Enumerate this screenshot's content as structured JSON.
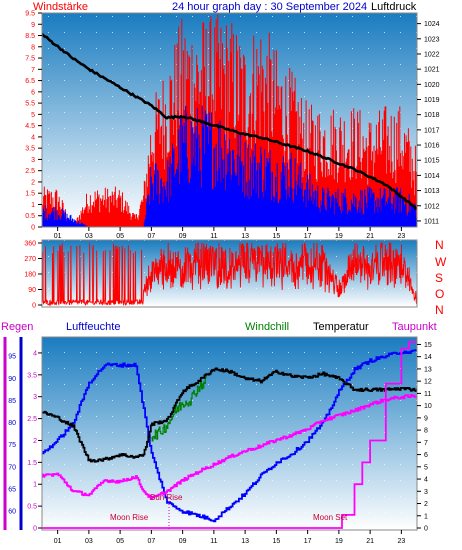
{
  "header": {
    "left_label": "Windstärke",
    "title": "24 hour graph day : 30 September 2024",
    "right_label": "Luftdruck"
  },
  "direction_labels": [
    "N",
    "W",
    "S",
    "O",
    "N"
  ],
  "legend": {
    "regen": "Regen",
    "luftfeuchte": "Luftfeuchte",
    "windchill": "Windchill",
    "temperatur": "Temperatur",
    "taupunkt": "Taupunkt"
  },
  "annotations": {
    "moon_rise": "Moon Rise",
    "sun_rise": "Sun Rise",
    "moon_set": "Moon Set"
  },
  "colors": {
    "wind_gust": "#ff0000",
    "wind_avg": "#0000ff",
    "pressure": "#000000",
    "direction": "#ff0000",
    "humidity": "#0000ff",
    "temperature": "#000000",
    "windchill": "#008000",
    "dewpoint": "#ff00ff",
    "rain": "#ff00ff",
    "bg_top": "#1a7cc0",
    "bg_bottom": "#ffffff"
  },
  "chart_data": [
    {
      "type": "area",
      "panel": "wind_pressure",
      "x_ticks": [
        "01",
        "03",
        "05",
        "07",
        "09",
        "11",
        "13",
        "15",
        "17",
        "19",
        "21",
        "23"
      ],
      "y_left_ticks": [
        "0",
        "0.5",
        "1",
        "1.5",
        "2",
        "2.5",
        "3",
        "3.5",
        "4",
        "4.5",
        "5",
        "5.5",
        "6",
        "6.5",
        "7",
        "7.5",
        "8",
        "8.5",
        "9",
        "9.5"
      ],
      "y_right_ticks": [
        "1011",
        "1012",
        "1013",
        "1014",
        "1015",
        "1016",
        "1017",
        "1018",
        "1019",
        "1020",
        "1021",
        "1022",
        "1023",
        "1024"
      ],
      "ylim_left": [
        0,
        9.5
      ],
      "ylim_right": [
        1010.6,
        1024.7
      ],
      "xlim": [
        0,
        24
      ],
      "series": [
        {
          "key": "gust",
          "x": [
            0,
            1,
            2,
            3,
            4,
            5,
            6,
            6.5,
            7,
            8,
            9,
            10,
            11,
            12,
            13,
            14,
            15,
            16,
            17,
            18,
            19,
            20,
            21,
            22,
            23,
            24
          ],
          "values": [
            1.8,
            1.8,
            0,
            1.8,
            1.8,
            1.8,
            0.5,
            1.8,
            5.5,
            7.5,
            9.5,
            9.5,
            9.5,
            9.5,
            8.5,
            9.5,
            8,
            7,
            5.5,
            5.5,
            5.5,
            5.5,
            5,
            5.5,
            5.5,
            3.5
          ]
        },
        {
          "key": "avg",
          "x": [
            0,
            1,
            2,
            3,
            4,
            5,
            6,
            6.5,
            7,
            8,
            9,
            10,
            11,
            12,
            13,
            14,
            15,
            16,
            17,
            18,
            19,
            20,
            21,
            22,
            23,
            24
          ],
          "values": [
            1,
            1,
            0.5,
            0,
            0,
            0,
            0,
            0,
            3,
            3,
            5.5,
            5.5,
            5.5,
            5,
            4,
            4,
            3.5,
            3.5,
            2.5,
            1.8,
            1.8,
            1.8,
            1.8,
            1.8,
            1.8,
            1.2
          ]
        },
        {
          "key": "pressure",
          "x": [
            0,
            1,
            2,
            3,
            4,
            5,
            6,
            7,
            8,
            9,
            10,
            11,
            12,
            13,
            14,
            15,
            16,
            17,
            18,
            19,
            20,
            21,
            22,
            23,
            24
          ],
          "values": [
            1023.3,
            1022.5,
            1021.7,
            1021,
            1020.4,
            1019.8,
            1019.2,
            1018.6,
            1017.8,
            1017.9,
            1017.6,
            1017.3,
            1017,
            1016.7,
            1016.5,
            1016.2,
            1015.9,
            1015.6,
            1015.2,
            1014.8,
            1014.4,
            1013.9,
            1013.4,
            1012.6,
            1011.8
          ]
        }
      ]
    },
    {
      "type": "line",
      "panel": "wind_direction",
      "x_ticks": [],
      "y_ticks": [
        "0",
        "90",
        "180",
        "270",
        "360"
      ],
      "ylim": [
        0,
        360
      ],
      "xlim": [
        0,
        24
      ],
      "series": [
        {
          "key": "direction",
          "x": [
            0,
            1,
            2,
            3,
            4,
            5,
            6,
            7,
            8,
            9,
            10,
            11,
            12,
            13,
            14,
            15,
            16,
            17,
            18,
            19,
            20,
            21,
            22,
            23,
            24
          ],
          "values": [
            0,
            20,
            0,
            30,
            0,
            0,
            10,
            250,
            340,
            300,
            360,
            340,
            300,
            360,
            330,
            350,
            300,
            340,
            320,
            90,
            360,
            300,
            360,
            330,
            0
          ]
        }
      ]
    },
    {
      "type": "line",
      "panel": "temperature",
      "x_ticks": [
        "01",
        "03",
        "05",
        "07",
        "09",
        "11",
        "13",
        "15",
        "17",
        "19",
        "21",
        "23"
      ],
      "y_left_outer_ticks": [
        "60",
        "65",
        "70",
        "75",
        "80",
        "85",
        "90",
        "95"
      ],
      "y_left_inner_ticks": [
        "0",
        "0.5",
        "1",
        "1.5",
        "2",
        "2.5",
        "3",
        "3.5",
        "4"
      ],
      "y_right_ticks": [
        "0",
        "1",
        "2",
        "3",
        "4",
        "5",
        "6",
        "7",
        "8",
        "9",
        "10",
        "11",
        "12",
        "13",
        "14",
        "15"
      ],
      "ylim_humidity": [
        56.2,
        98.2
      ],
      "ylim_rain": [
        0,
        4.25
      ],
      "ylim_temp": [
        0,
        15.2
      ],
      "xlim": [
        0,
        24
      ],
      "series": [
        {
          "key": "humidity",
          "x": [
            0,
            1,
            2,
            3,
            4,
            5,
            6,
            6.5,
            7,
            8,
            9,
            10,
            11,
            12,
            13,
            14,
            15,
            16,
            17,
            18,
            19,
            20,
            21,
            22,
            23,
            24
          ],
          "values": [
            73,
            76,
            80,
            89,
            93,
            93,
            93,
            83,
            73,
            62,
            60,
            59,
            58,
            61,
            64,
            68,
            71,
            73,
            76,
            80,
            87,
            92,
            94,
            95,
            96,
            96
          ]
        },
        {
          "key": "temperature",
          "x": [
            0,
            1,
            2,
            3,
            4,
            5,
            6,
            6.5,
            7,
            8,
            9,
            10,
            11,
            12,
            13,
            14,
            15,
            16,
            17,
            18,
            19,
            20,
            21,
            22,
            23,
            24
          ],
          "values": [
            9.5,
            9,
            8.3,
            5.5,
            5.6,
            6,
            5.8,
            6,
            8.5,
            8.8,
            11.2,
            12,
            13,
            12.8,
            12.2,
            12,
            12.8,
            12.4,
            12.3,
            12.6,
            12.2,
            11.3,
            11.3,
            11.3,
            11.4,
            11.3
          ]
        },
        {
          "key": "windchill",
          "x": [
            7,
            7.5,
            8,
            8.5,
            9,
            9.5,
            10,
            10.5
          ],
          "values": [
            7.5,
            7.8,
            8.4,
            9.5,
            10.2,
            10.5,
            11.5,
            12
          ]
        },
        {
          "key": "dewpoint",
          "x": [
            0,
            1,
            2,
            3,
            4,
            5,
            6,
            6.5,
            7,
            8,
            9,
            10,
            11,
            12,
            13,
            14,
            15,
            16,
            17,
            18,
            19,
            20,
            21,
            22,
            23,
            24
          ],
          "values": [
            4.3,
            4.4,
            3,
            2.7,
            3.9,
            3.8,
            4.2,
            3,
            2.4,
            3,
            3.9,
            4.6,
            5.2,
            5.8,
            6.3,
            6.7,
            7.2,
            7.6,
            8.1,
            8.8,
            9.2,
            9.6,
            10.1,
            10.5,
            10.7,
            10.8
          ]
        },
        {
          "key": "rain",
          "x": [
            0,
            19,
            19.2,
            20,
            20.5,
            21,
            22,
            23,
            23.5,
            24
          ],
          "values": [
            0,
            0,
            0.3,
            1,
            1.5,
            2,
            3.3,
            4.1,
            4.25,
            4.25
          ]
        }
      ]
    }
  ]
}
